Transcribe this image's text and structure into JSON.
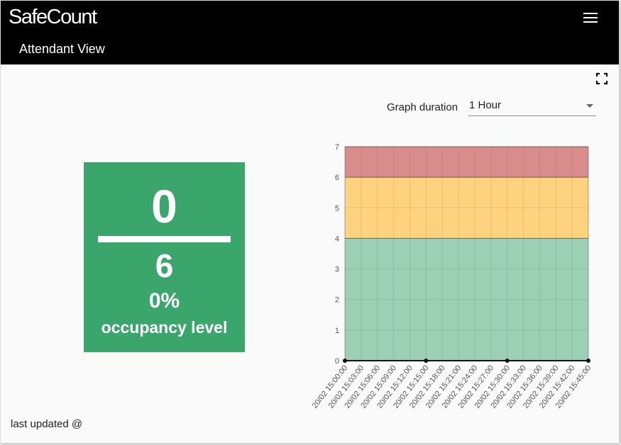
{
  "header": {
    "logo_regular_1": "Safe",
    "logo_bold": "",
    "logo_regular_2": "Count",
    "view_title": "Attendant View"
  },
  "icons": {
    "menu": "hamburger-menu-icon",
    "fullscreen": "fullscreen-icon",
    "dropdown": "chevron-down-icon"
  },
  "controls": {
    "duration_label": "Graph duration",
    "duration_value": "1 Hour"
  },
  "occupancy": {
    "current": "0",
    "max": "6",
    "percent": "0%",
    "label": "occupancy level",
    "level_fraction": 0.0,
    "color": "#3aa66c"
  },
  "footer": {
    "last_updated": "last updated @"
  },
  "colors": {
    "topbar": "#000000",
    "band_red": "#d98c8c",
    "band_yellow": "#ffd27f",
    "band_green": "#9bd0b5"
  },
  "chart_data": {
    "type": "area",
    "title": "",
    "xlabel": "",
    "ylabel": "",
    "ylim": [
      0,
      7
    ],
    "yticks": [
      0,
      1,
      2,
      3,
      4,
      5,
      6,
      7
    ],
    "grid": true,
    "x": [
      "20/02 15:00:00",
      "20/02 15:03:00",
      "20/02 15:06:00",
      "20/02 15:09:00",
      "20/02 15:12:00",
      "20/02 15:15:00",
      "20/02 15:18:00",
      "20/02 15:21:00",
      "20/02 15:24:00",
      "20/02 15:27:00",
      "20/02 15:30:00",
      "20/02 15:33:00",
      "20/02 15:36:00",
      "20/02 15:39:00",
      "20/02 15:42:00",
      "20/02 15:45:00"
    ],
    "bands": [
      {
        "from": 0,
        "to": 4,
        "color": "#9bd0b5"
      },
      {
        "from": 4,
        "to": 6,
        "color": "#ffd27f"
      },
      {
        "from": 6,
        "to": 7,
        "color": "#d98c8c"
      }
    ],
    "series": [
      {
        "points": [
          [
            "20/02 15:00:00",
            0
          ],
          [
            "20/02 15:15:00",
            0
          ],
          [
            "20/02 15:30:00",
            0
          ],
          [
            "20/02 15:45:00",
            0
          ]
        ]
      }
    ]
  }
}
